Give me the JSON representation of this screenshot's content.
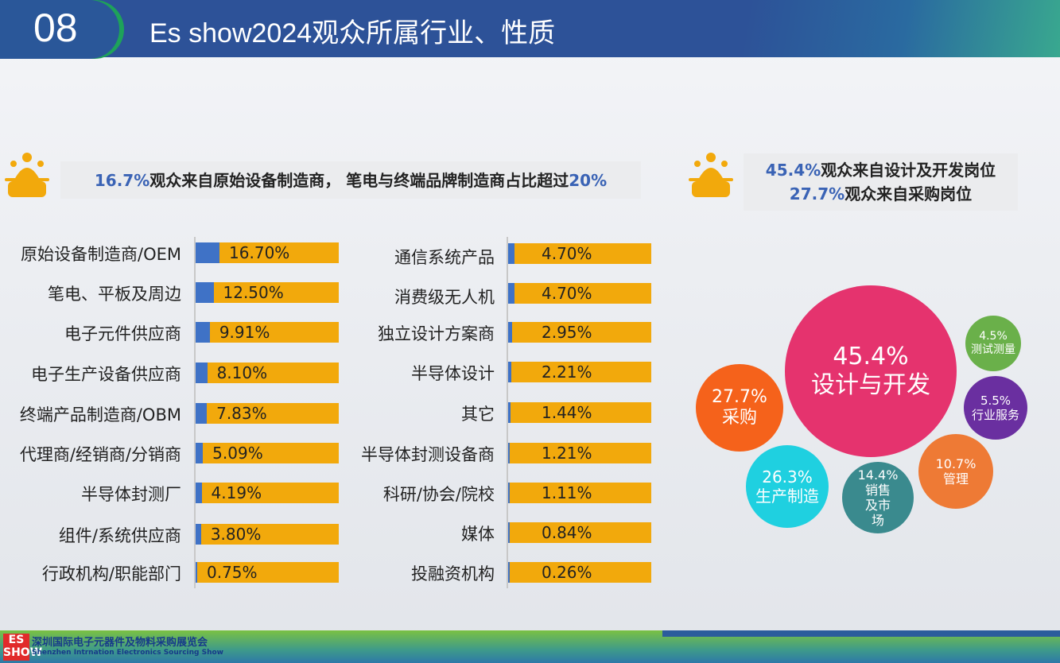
{
  "header": {
    "number": "08",
    "title": "Es show2024观众所属行业、性质"
  },
  "banner_left": {
    "highlight1": "16.7%",
    "text1": "观众来自原始设备制造商， 笔电与终端品牌制造商占比超过",
    "highlight2": "20%"
  },
  "banner_right": {
    "line1_highlight": "45.4%",
    "line1_text": "观众来自设计及开发岗位",
    "line2_highlight": "27.7%",
    "line2_text": "观众来自采购岗位"
  },
  "icon_text": "职业",
  "colors": {
    "blue_fill": "#3f72c6",
    "orange_bar": "#f2a90c",
    "highlight": "#3a63b5"
  },
  "chart_data": [
    {
      "type": "bar",
      "orientation": "horizontal",
      "value_unit": "%",
      "max": 100,
      "categories": [
        "原始设备制造商/OEM",
        "笔电、平板及周边",
        "电子元件供应商",
        "电子生产设备供应商",
        "终端产品制造商/OBM",
        "代理商/经销商/分销商",
        "半导体封测厂",
        "组件/系统供应商",
        "行政机构/职能部门"
      ],
      "values": [
        16.7,
        12.5,
        9.91,
        8.1,
        7.83,
        5.09,
        4.19,
        3.8,
        0.75
      ],
      "labels": [
        "16.70%",
        "12.50%",
        "9.91%",
        "8.10%",
        "7.83%",
        "5.09%",
        "4.19%",
        "3.80%",
        "0.75%"
      ]
    },
    {
      "type": "bar",
      "orientation": "horizontal",
      "value_unit": "%",
      "max": 100,
      "categories": [
        "通信系统产品",
        "消费级无人机",
        "独立设计方案商",
        "半导体设计",
        "其它",
        "半导体封测设备商",
        "科研/协会/院校",
        "媒体",
        "投融资机构"
      ],
      "values": [
        4.7,
        4.7,
        2.95,
        2.21,
        1.44,
        1.21,
        1.11,
        0.84,
        0.26
      ],
      "labels": [
        "4.70%",
        "4.70%",
        "2.95%",
        "2.21%",
        "1.44%",
        "1.21%",
        "1.11%",
        "0.84%",
        "0.26%"
      ]
    },
    {
      "type": "bubble",
      "items": [
        {
          "label": "设计与开发",
          "value": 45.4,
          "text": "45.4%",
          "color": "#e5336e"
        },
        {
          "label": "采购",
          "value": 27.7,
          "text": "27.7%",
          "color": "#f5621b"
        },
        {
          "label": "生产制造",
          "value": 26.3,
          "text": "26.3%",
          "color": "#1fd0e0"
        },
        {
          "label": "销售及市场",
          "value": 14.4,
          "text": "14.4%",
          "color": "#3a8a8e"
        },
        {
          "label": "管理",
          "value": 10.7,
          "text": "10.7%",
          "color": "#ee7a35"
        },
        {
          "label": "行业服务",
          "value": 5.5,
          "text": "5.5%",
          "color": "#6a2fa0"
        },
        {
          "label": "测试测量",
          "value": 4.5,
          "text": "4.5%",
          "color": "#6ab04a"
        }
      ]
    }
  ],
  "footer": {
    "logo": "ES SHOW",
    "cn": "深圳国际电子元器件及物料采购展览会",
    "en": "Shenzhen Intrnation Electronics Sourcing Show"
  }
}
